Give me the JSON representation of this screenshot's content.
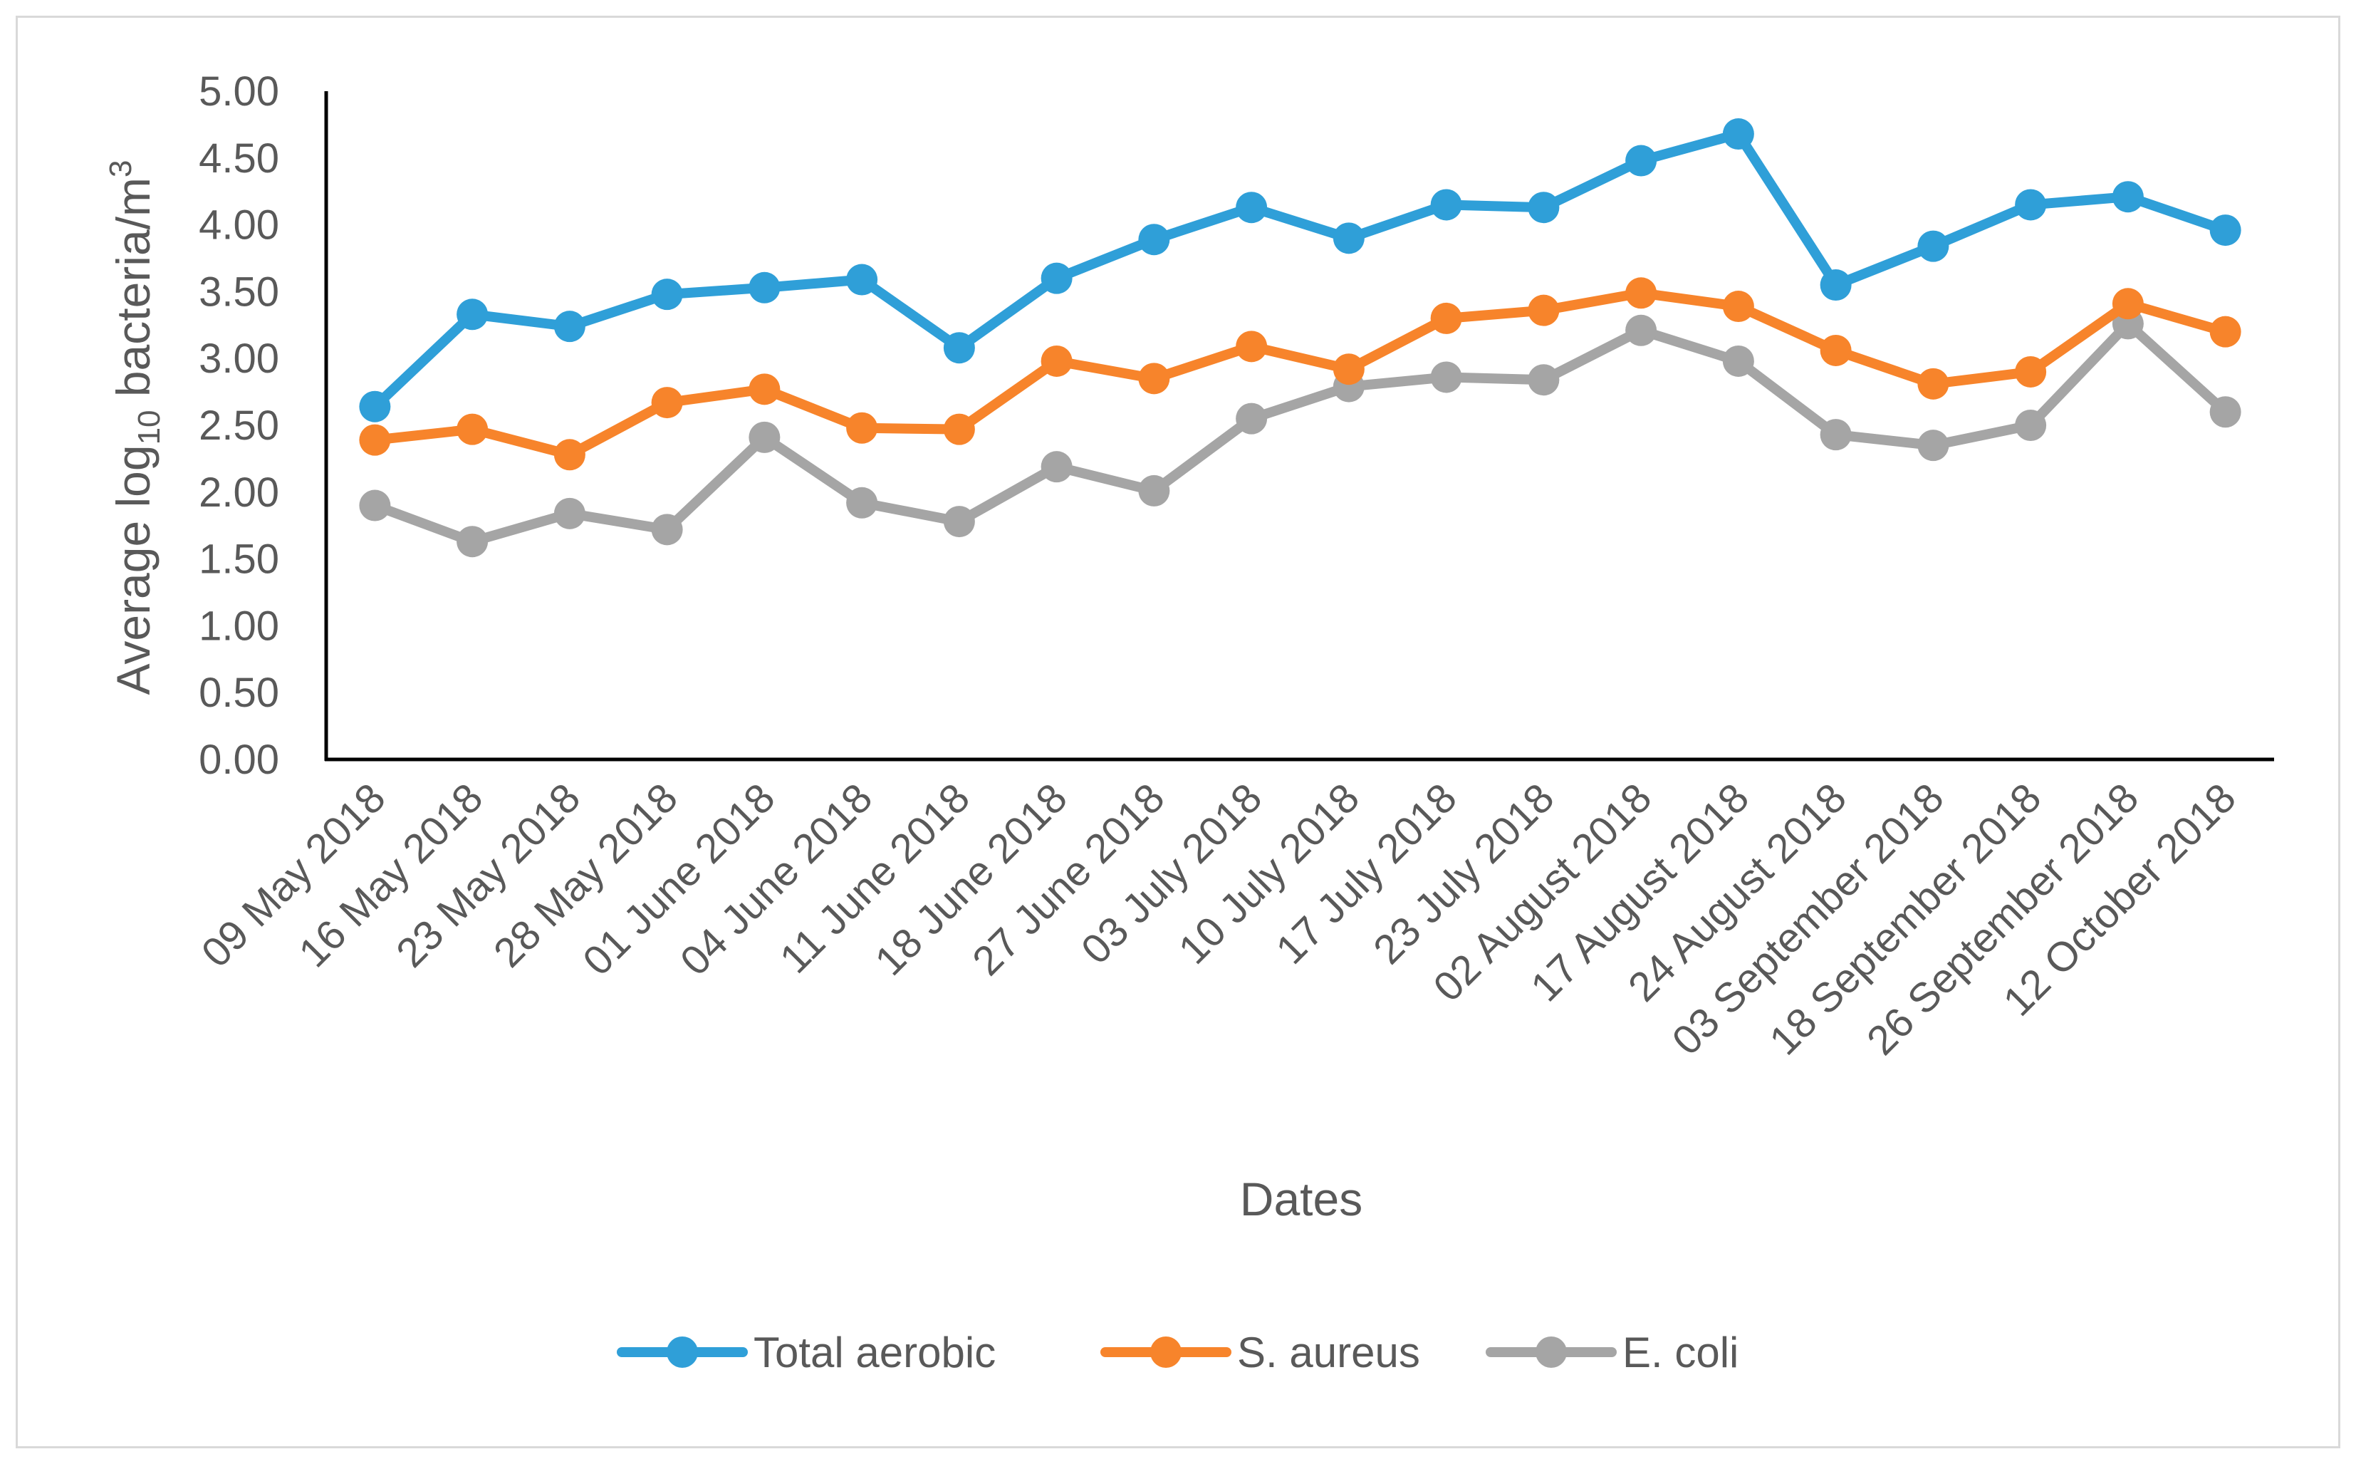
{
  "chart_data": {
    "type": "line",
    "title": "",
    "xlabel": "Dates",
    "ylabel_parts": [
      "Average log",
      "10",
      " bacteria/m",
      "3"
    ],
    "ylim": [
      0,
      5
    ],
    "y_ticks": [
      "0.00",
      "0.50",
      "1.00",
      "1.50",
      "2.00",
      "2.50",
      "3.00",
      "3.50",
      "4.00",
      "4.50",
      "5.00"
    ],
    "grid": false,
    "legend_position": "bottom",
    "categories": [
      "09 May 2018",
      "16 May 2018",
      "23 May 2018",
      "28 May 2018",
      "01 June 2018",
      "04 June 2018",
      "11 June 2018",
      "18 June 2018",
      "27 June 2018",
      "03 July 2018",
      "10 July 2018",
      "17 July 2018",
      "23 July 2018",
      "02 August 2018",
      "17 August 2018",
      "24 August 2018",
      "03 September 2018",
      "18 September 2018",
      "26 September 2018",
      "12 October 2018"
    ],
    "series": [
      {
        "name": "Total aerobic",
        "color": "#2f9fd8",
        "values": [
          2.64,
          3.33,
          3.24,
          3.48,
          3.53,
          3.59,
          3.08,
          3.6,
          3.89,
          4.13,
          3.9,
          4.15,
          4.13,
          4.48,
          4.68,
          3.55,
          3.84,
          4.15,
          4.21,
          3.96
        ]
      },
      {
        "name": "S. aureus",
        "color": "#f7842b",
        "values": [
          2.39,
          2.47,
          2.28,
          2.67,
          2.77,
          2.48,
          2.47,
          2.98,
          2.85,
          3.09,
          2.92,
          3.3,
          3.36,
          3.49,
          3.39,
          3.06,
          2.81,
          2.9,
          3.41,
          3.2
        ]
      },
      {
        "name": "E. coli",
        "color": "#a5a5a5",
        "values": [
          1.9,
          1.63,
          1.84,
          1.72,
          2.41,
          1.92,
          1.78,
          2.19,
          2.01,
          2.55,
          2.79,
          2.86,
          2.84,
          3.21,
          2.98,
          2.43,
          2.35,
          2.5,
          3.26,
          2.6
        ]
      }
    ]
  }
}
